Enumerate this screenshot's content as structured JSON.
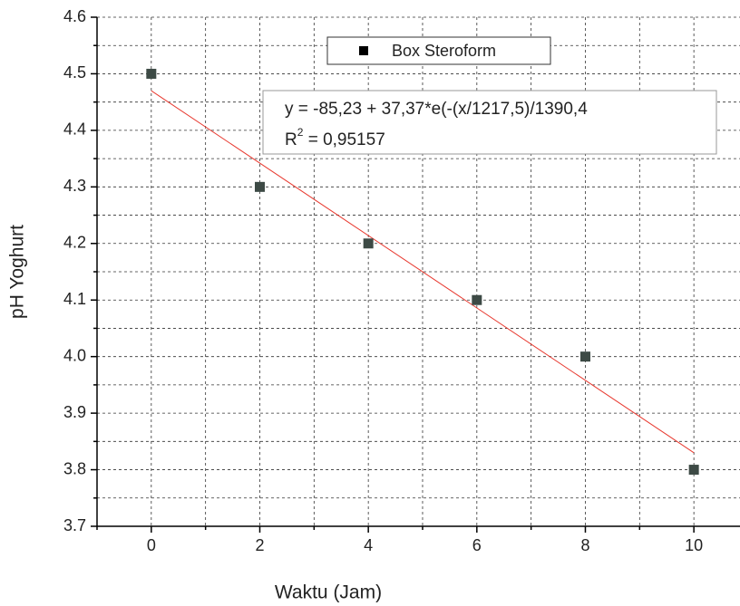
{
  "chart_data": {
    "type": "scatter",
    "x_label": "Waktu (Jam)",
    "y_label": "pH Yoghurt",
    "series": [
      {
        "name": "Box Steroform",
        "color": "#3d4a45",
        "x": [
          0,
          2,
          4,
          6,
          8,
          10
        ],
        "values": [
          4.5,
          4.3,
          4.2,
          4.1,
          4.0,
          3.8
        ]
      }
    ],
    "legend_color": "#000000",
    "fit": {
      "color": "#e8392f",
      "x": [
        0,
        10
      ],
      "values": [
        4.47,
        3.83
      ],
      "equation": "y = -85,23 + 37,37*e(-(x/1217,5)/1390,4",
      "r2_base": "R",
      "r2_sup": "2",
      "r2_rest": " = 0,95157"
    },
    "xlim": [
      -1,
      10.85
    ],
    "ylim": [
      3.7,
      4.6
    ],
    "xticks": [
      0,
      2,
      4,
      6,
      8,
      10
    ],
    "xminorticks": [
      -1,
      1,
      3,
      5,
      7,
      9
    ],
    "yticks": [
      3.7,
      3.8,
      3.9,
      {
        "value": 4,
        "label": "4.0"
      },
      4.1,
      4.2,
      4.3,
      4.4,
      4.5,
      4.6
    ],
    "yminorticks": [
      3.75,
      3.85,
      3.95,
      4.05,
      4.15,
      4.25,
      4.35,
      4.45,
      4.55
    ],
    "grid": true
  }
}
